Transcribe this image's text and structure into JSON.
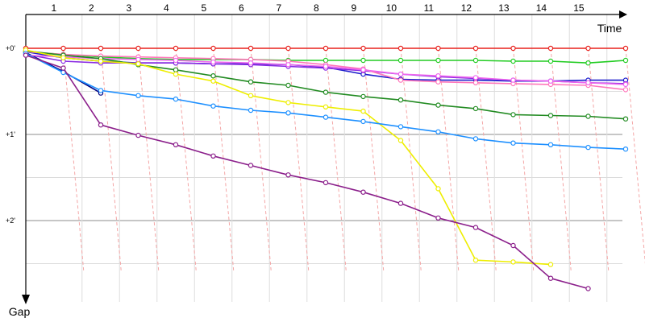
{
  "chart_data": {
    "type": "line",
    "title": "",
    "xlabel": "Time",
    "ylabel": "Gap",
    "x_ticks": [
      "1",
      "2",
      "3",
      "4",
      "5",
      "6",
      "7",
      "8",
      "9",
      "10",
      "11",
      "12",
      "13",
      "14",
      "15"
    ],
    "y_ticks": [
      "+0'",
      "+1'",
      "+2'"
    ],
    "x_range": [
      1,
      16.5
    ],
    "y_range": [
      0,
      2.85
    ],
    "y_unit": "minutes",
    "grid": true,
    "legend": "none",
    "series": [
      {
        "color": "#e8201c",
        "values": [
          [
            0,
            0
          ],
          [
            1,
            0
          ],
          [
            2,
            0
          ],
          [
            3,
            0
          ],
          [
            4,
            0
          ],
          [
            5,
            0
          ],
          [
            6,
            0
          ],
          [
            7,
            0
          ],
          [
            8,
            0
          ],
          [
            9,
            0
          ],
          [
            10,
            0
          ],
          [
            11,
            0
          ],
          [
            12,
            0
          ],
          [
            13,
            0
          ],
          [
            14,
            0
          ],
          [
            15,
            0
          ],
          [
            16,
            0
          ]
        ]
      },
      {
        "color": "#22cc22",
        "values": [
          [
            0,
            0.04
          ],
          [
            1,
            0.07
          ],
          [
            2,
            0.1
          ],
          [
            3,
            0.12
          ],
          [
            4,
            0.13
          ],
          [
            5,
            0.13
          ],
          [
            6,
            0.13
          ],
          [
            7,
            0.14
          ],
          [
            8,
            0.14
          ],
          [
            9,
            0.14
          ],
          [
            10,
            0.14
          ],
          [
            11,
            0.14
          ],
          [
            12,
            0.14
          ],
          [
            13,
            0.15
          ],
          [
            14,
            0.15
          ],
          [
            15,
            0.17
          ],
          [
            16,
            0.14
          ]
        ]
      },
      {
        "color": "#1c1ccc",
        "values": [
          [
            0,
            0.04
          ],
          [
            1,
            0.11
          ],
          [
            2,
            0.15
          ],
          [
            3,
            0.17
          ],
          [
            4,
            0.17
          ],
          [
            5,
            0.18
          ],
          [
            6,
            0.18
          ],
          [
            7,
            0.19
          ],
          [
            8,
            0.22
          ],
          [
            9,
            0.3
          ],
          [
            10,
            0.36
          ],
          [
            11,
            0.37
          ],
          [
            12,
            0.37
          ],
          [
            13,
            0.38
          ],
          [
            14,
            0.38
          ],
          [
            15,
            0.37
          ],
          [
            16,
            0.37
          ]
        ]
      },
      {
        "color": "#8a2be2",
        "values": [
          [
            0,
            0.07
          ],
          [
            1,
            0.15
          ],
          [
            2,
            0.17
          ],
          [
            3,
            0.17
          ],
          [
            4,
            0.17
          ],
          [
            5,
            0.18
          ],
          [
            6,
            0.19
          ],
          [
            7,
            0.21
          ],
          [
            8,
            0.23
          ],
          [
            9,
            0.26
          ],
          [
            10,
            0.3
          ],
          [
            11,
            0.33
          ],
          [
            12,
            0.35
          ],
          [
            13,
            0.37
          ],
          [
            14,
            0.38
          ],
          [
            15,
            0.4
          ],
          [
            16,
            0.41
          ]
        ]
      },
      {
        "color": "#000080",
        "values": [
          [
            0,
            0.05
          ],
          [
            1,
            0.27
          ],
          [
            2,
            0.52
          ]
        ]
      },
      {
        "color": "#ff77bb",
        "values": [
          [
            0,
            0.04
          ],
          [
            1,
            0.07
          ],
          [
            2,
            0.09
          ],
          [
            3,
            0.1
          ],
          [
            4,
            0.11
          ],
          [
            5,
            0.12
          ],
          [
            6,
            0.13
          ],
          [
            7,
            0.15
          ],
          [
            8,
            0.19
          ],
          [
            9,
            0.24
          ],
          [
            10,
            0.37
          ],
          [
            11,
            0.39
          ],
          [
            12,
            0.4
          ],
          [
            13,
            0.41
          ],
          [
            14,
            0.42
          ],
          [
            15,
            0.43
          ],
          [
            16,
            0.48
          ]
        ]
      },
      {
        "color": "#ee66ee",
        "values": [
          [
            0,
            0.08
          ],
          [
            1,
            0.1
          ],
          [
            2,
            0.12
          ],
          [
            3,
            0.13
          ],
          [
            4,
            0.14
          ],
          [
            5,
            0.16
          ],
          [
            6,
            0.17
          ],
          [
            7,
            0.19
          ],
          [
            8,
            0.21
          ],
          [
            9,
            0.25
          ],
          [
            10,
            0.3
          ],
          [
            11,
            0.32
          ],
          [
            12,
            0.34
          ],
          [
            13,
            0.37
          ],
          [
            14,
            0.38
          ],
          [
            15,
            0.4
          ],
          [
            16,
            0.42
          ]
        ]
      },
      {
        "color": "#228b22",
        "values": [
          [
            0,
            0.03
          ],
          [
            1,
            0.08
          ],
          [
            2,
            0.12
          ],
          [
            3,
            0.19
          ],
          [
            4,
            0.25
          ],
          [
            5,
            0.32
          ],
          [
            6,
            0.39
          ],
          [
            7,
            0.43
          ],
          [
            8,
            0.51
          ],
          [
            9,
            0.56
          ],
          [
            10,
            0.6
          ],
          [
            11,
            0.66
          ],
          [
            12,
            0.7
          ],
          [
            13,
            0.77
          ],
          [
            14,
            0.78
          ],
          [
            15,
            0.79
          ],
          [
            16,
            0.82
          ]
        ]
      },
      {
        "color": "#eeee00",
        "values": [
          [
            0,
            0.02
          ],
          [
            1,
            0.11
          ],
          [
            2,
            0.15
          ],
          [
            3,
            0.18
          ],
          [
            4,
            0.3
          ],
          [
            5,
            0.38
          ],
          [
            6,
            0.55
          ],
          [
            7,
            0.63
          ],
          [
            8,
            0.68
          ],
          [
            9,
            0.73
          ],
          [
            10,
            1.07
          ],
          [
            11,
            1.63
          ],
          [
            12,
            2.46
          ],
          [
            13,
            2.48
          ],
          [
            14,
            2.51
          ]
        ]
      },
      {
        "color": "#1e90ff",
        "values": [
          [
            0,
            0.06
          ],
          [
            1,
            0.28
          ],
          [
            2,
            0.49
          ],
          [
            3,
            0.55
          ],
          [
            4,
            0.59
          ],
          [
            5,
            0.67
          ],
          [
            6,
            0.72
          ],
          [
            7,
            0.75
          ],
          [
            8,
            0.8
          ],
          [
            9,
            0.85
          ],
          [
            10,
            0.91
          ],
          [
            11,
            0.97
          ],
          [
            12,
            1.05
          ],
          [
            13,
            1.1
          ],
          [
            14,
            1.12
          ],
          [
            15,
            1.15
          ],
          [
            16,
            1.17
          ]
        ]
      },
      {
        "color": "#8b1f8b",
        "values": [
          [
            0,
            0.08
          ],
          [
            1,
            0.23
          ],
          [
            2,
            0.89
          ],
          [
            3,
            1.01
          ],
          [
            4,
            1.12
          ],
          [
            5,
            1.25
          ],
          [
            6,
            1.36
          ],
          [
            7,
            1.47
          ],
          [
            8,
            1.56
          ],
          [
            9,
            1.67
          ],
          [
            10,
            1.8
          ],
          [
            11,
            1.97
          ],
          [
            12,
            2.08
          ],
          [
            13,
            2.29
          ],
          [
            14,
            2.67
          ],
          [
            15,
            2.79
          ]
        ]
      }
    ]
  }
}
